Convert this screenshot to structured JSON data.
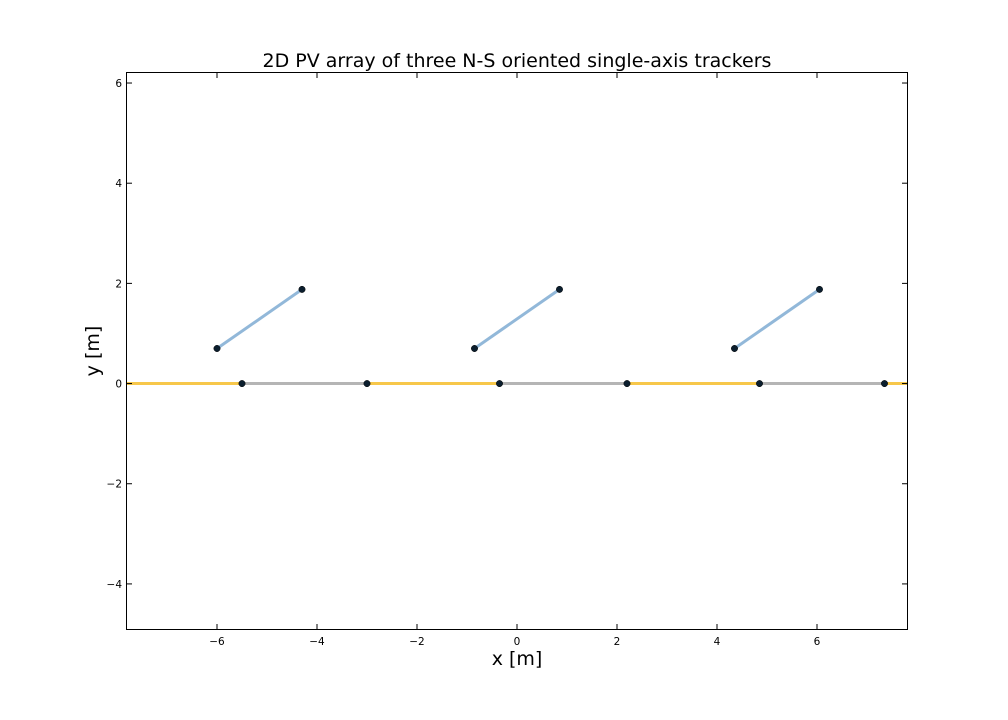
{
  "chart_data": {
    "type": "line",
    "title": "2D PV array of three N-S oriented single-axis trackers",
    "xlabel": "x [m]",
    "ylabel": "y [m]",
    "xlim": [
      -7.8,
      7.8
    ],
    "ylim": [
      -4.9,
      6.2
    ],
    "xticks": [
      -6,
      -4,
      -2,
      0,
      2,
      4,
      6
    ],
    "yticks": [
      -4,
      -2,
      0,
      2,
      4,
      6
    ],
    "xtick_labels": [
      "−6",
      "−4",
      "−2",
      "0",
      "2",
      "4",
      "6"
    ],
    "ytick_labels": [
      "−4",
      "−2",
      "0",
      "2",
      "4",
      "6"
    ],
    "grid": false,
    "colors": {
      "pv_rows": "#92b8d9",
      "illuminated_ground": "#f7c74a",
      "shaded_ground": "#b5b5b5",
      "points": "#0b1e2e"
    },
    "series": [
      {
        "role": "pv_rows",
        "segments": [
          [
            [
              -6.0,
              0.7
            ],
            [
              -4.3,
              1.88
            ]
          ],
          [
            [
              -0.85,
              0.7
            ],
            [
              0.85,
              1.88
            ]
          ],
          [
            [
              4.35,
              0.7
            ],
            [
              6.05,
              1.88
            ]
          ]
        ]
      },
      {
        "role": "illuminated_ground",
        "segments": [
          [
            [
              -7.8,
              0.0
            ],
            [
              -5.5,
              0.0
            ]
          ],
          [
            [
              -3.0,
              0.0
            ],
            [
              -0.35,
              0.0
            ]
          ],
          [
            [
              2.2,
              0.0
            ],
            [
              4.85,
              0.0
            ]
          ],
          [
            [
              7.35,
              0.0
            ],
            [
              7.8,
              0.0
            ]
          ]
        ]
      },
      {
        "role": "shaded_ground",
        "segments": [
          [
            [
              -5.5,
              0.0
            ],
            [
              -3.0,
              0.0
            ]
          ],
          [
            [
              -0.35,
              0.0
            ],
            [
              2.2,
              0.0
            ]
          ],
          [
            [
              4.85,
              0.0
            ],
            [
              7.35,
              0.0
            ]
          ]
        ]
      }
    ],
    "points": [
      [
        -6.0,
        0.7
      ],
      [
        -4.3,
        1.88
      ],
      [
        -0.85,
        0.7
      ],
      [
        0.85,
        1.88
      ],
      [
        4.35,
        0.7
      ],
      [
        6.05,
        1.88
      ],
      [
        -5.5,
        0.0
      ],
      [
        -3.0,
        0.0
      ],
      [
        -0.35,
        0.0
      ],
      [
        2.2,
        0.0
      ],
      [
        4.85,
        0.0
      ],
      [
        7.35,
        0.0
      ]
    ]
  }
}
